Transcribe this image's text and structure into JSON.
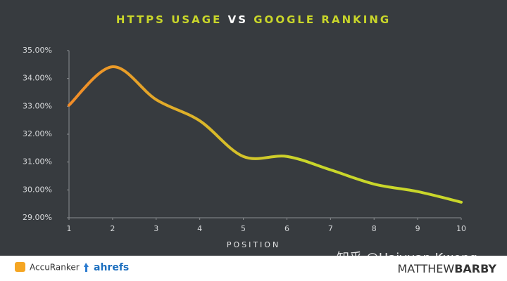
{
  "chart_data": {
    "type": "line",
    "title_parts": [
      {
        "text": "HTTPS USAGE",
        "color": "#c9d62a"
      },
      {
        "text": "VS",
        "color": "#ffffff"
      },
      {
        "text": "GOOGLE RANKING",
        "color": "#c9d62a"
      }
    ],
    "x_label": "POSITION",
    "x": [
      1,
      2,
      3,
      4,
      5,
      6,
      7,
      8,
      9,
      10
    ],
    "series": [
      {
        "values": [
          33.04,
          34.42,
          33.24,
          32.48,
          31.2,
          31.2,
          30.72,
          30.21,
          29.94,
          29.56
        ],
        "color_start": "#f28c28",
        "color_end": "#c9d62a"
      }
    ],
    "xlim": [
      1,
      10
    ],
    "xticks": [
      1,
      2,
      3,
      4,
      5,
      6,
      7,
      8,
      9,
      10
    ],
    "ylim": [
      29,
      35
    ],
    "yticks": [
      {
        "value": 29,
        "label": "29.00%"
      },
      {
        "value": 30,
        "label": "30.00%"
      },
      {
        "value": 31,
        "label": "31.00%"
      },
      {
        "value": 32,
        "label": "32.00%"
      },
      {
        "value": 33,
        "label": "33.00%"
      },
      {
        "value": 34,
        "label": "34.00%"
      },
      {
        "value": 35,
        "label": "35.00%"
      }
    ],
    "grid": false
  },
  "footer": {
    "logos": [
      "AccuRanker",
      "ahrefs"
    ],
    "brand_parts": [
      "MATTHEW",
      "BARBY"
    ]
  },
  "watermark": "知乎 @Haiyuan Kwong"
}
